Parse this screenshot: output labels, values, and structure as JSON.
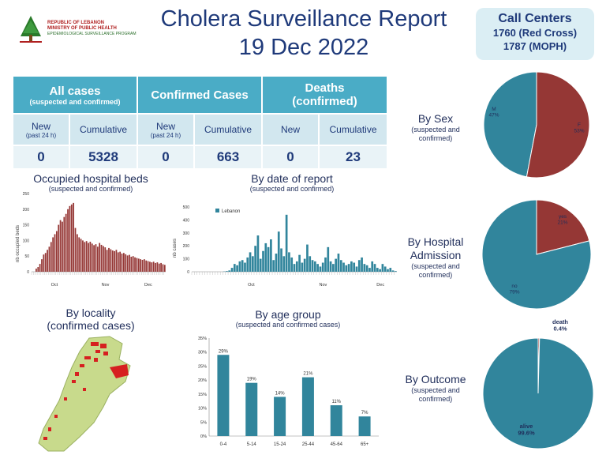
{
  "header": {
    "logo_line1": "REPUBLIC OF LEBANON",
    "logo_line2": "MINISTRY OF PUBLIC HEALTH",
    "logo_line3": "EPIDEMIOLOGICAL SURVEILLANCE PROGRAM",
    "title_line1": "Cholera Surveillance Report",
    "title_line2": "19 Dec 2022"
  },
  "call_centers": {
    "title": "Call Centers",
    "line1": "1760 (Red Cross)",
    "line2": "1787 (MOPH)"
  },
  "stats": {
    "all_cases": "All cases",
    "all_cases_sub": "(suspected and confirmed)",
    "confirmed": "Confirmed Cases",
    "deaths": "Deaths (confirmed)",
    "new": "New",
    "new_sub": "(past 24 h)",
    "new_sub2": "(past 24 h)",
    "cumulative": "Cumulative",
    "all_new": "0",
    "all_cum": "5328",
    "conf_new": "0",
    "conf_cum": "663",
    "deaths_new": "0",
    "deaths_cum": "23"
  },
  "hospital_beds": {
    "title": "Occupied hospital beds",
    "subtitle": "(suspected and confirmed)"
  },
  "date_report": {
    "title": "By date of report",
    "subtitle": "(suspected and confirmed)"
  },
  "locality": {
    "title_line1": "By locality",
    "title_line2": "(confirmed cases)"
  },
  "age": {
    "title": "By age group",
    "subtitle": "(suspected and confirmed cases)"
  },
  "sex_pie": {
    "title": "By Sex",
    "sub1": "(suspected and",
    "sub2": "confirmed)"
  },
  "hosp_pie": {
    "title1": "By Hospital",
    "title2": "Admission",
    "sub1": "(suspected and",
    "sub2": "confirmed)"
  },
  "outcome_pie": {
    "title": "By Outcome",
    "sub1": "(suspected and",
    "sub2": "confirmed)"
  },
  "colors": {
    "teal": "#31859c",
    "red": "#953735",
    "header": "#4aacc6"
  },
  "chart_data": [
    {
      "id": "hospital_beds",
      "type": "bar",
      "ylabel": "nb occupied beds",
      "ylim": [
        0,
        250
      ],
      "yticks": [
        0,
        50,
        100,
        150,
        200,
        250
      ],
      "month_labels": [
        "Oct",
        "Nov",
        "Dec"
      ],
      "values": [
        0,
        0,
        10,
        15,
        25,
        40,
        55,
        60,
        70,
        80,
        95,
        110,
        120,
        130,
        150,
        165,
        160,
        175,
        185,
        200,
        210,
        215,
        220,
        140,
        120,
        110,
        105,
        100,
        95,
        98,
        92,
        96,
        90,
        85,
        88,
        80,
        92,
        86,
        82,
        78,
        70,
        76,
        72,
        68,
        66,
        70,
        62,
        64,
        58,
        60,
        56,
        52,
        54,
        48,
        50,
        46,
        44,
        42,
        40,
        38,
        40,
        36,
        34,
        32,
        30,
        32,
        28,
        30,
        26,
        28,
        24,
        22
      ]
    },
    {
      "id": "date_report",
      "type": "bar",
      "ylabel": "nb cases",
      "ylim": [
        0,
        500
      ],
      "yticks": [
        0,
        100,
        200,
        300,
        400,
        500
      ],
      "legend": [
        "Lebanon"
      ],
      "month_labels": [
        "Oct",
        "Nov",
        "Dec"
      ],
      "values": [
        0,
        0,
        0,
        0,
        0,
        0,
        0,
        0,
        0,
        0,
        0,
        0,
        2,
        5,
        10,
        30,
        60,
        50,
        80,
        90,
        70,
        110,
        150,
        120,
        200,
        280,
        100,
        160,
        220,
        190,
        250,
        90,
        140,
        310,
        180,
        120,
        440,
        150,
        110,
        60,
        80,
        130,
        70,
        100,
        210,
        120,
        90,
        80,
        60,
        40,
        70,
        110,
        190,
        80,
        60,
        100,
        140,
        90,
        70,
        50,
        60,
        80,
        70,
        40,
        90,
        110,
        60,
        50,
        30,
        80,
        60,
        30,
        20,
        60,
        40,
        20,
        30,
        10,
        5
      ]
    },
    {
      "id": "age_group",
      "type": "bar",
      "categories": [
        "0-4",
        "5-14",
        "15-24",
        "25-44",
        "45-64",
        "65+"
      ],
      "values": [
        29,
        19,
        14,
        21,
        11,
        7
      ],
      "value_labels": [
        "29%",
        "19%",
        "14%",
        "21%",
        "11%",
        "7%"
      ],
      "ylim": [
        0,
        35
      ],
      "ytick_labels": [
        "0%",
        "5%",
        "10%",
        "15%",
        "20%",
        "25%",
        "30%",
        "35%"
      ]
    },
    {
      "id": "sex",
      "type": "pie",
      "labels": [
        "M",
        "F"
      ],
      "values": [
        47,
        53
      ],
      "value_labels": [
        "47%",
        "53%"
      ]
    },
    {
      "id": "hospital_admission",
      "type": "pie",
      "labels": [
        "yes",
        "no"
      ],
      "values": [
        21,
        79
      ],
      "value_labels": [
        "21%",
        "79%"
      ]
    },
    {
      "id": "outcome",
      "type": "pie",
      "labels": [
        "death",
        "alive"
      ],
      "values": [
        0.4,
        99.6
      ],
      "value_labels": [
        "0.4%",
        "99.6%"
      ]
    }
  ]
}
